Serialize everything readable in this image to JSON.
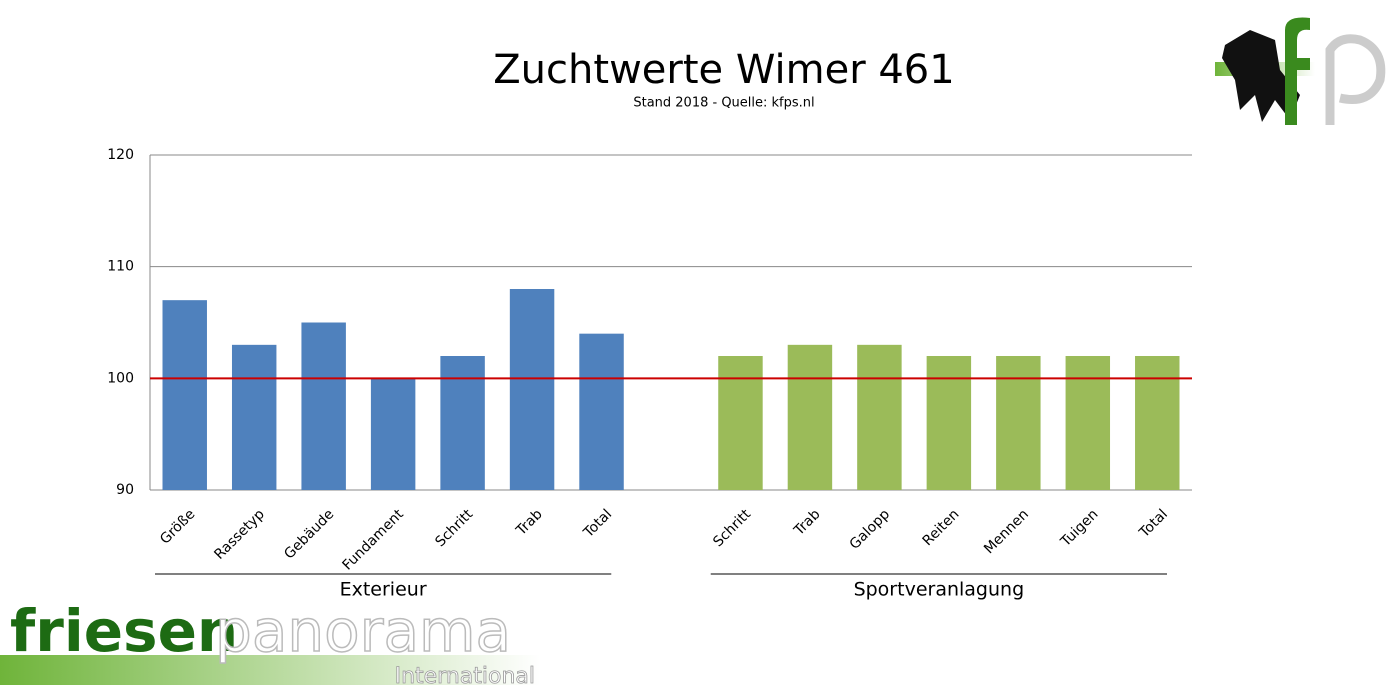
{
  "chart_data": {
    "type": "bar",
    "title": "Zuchtwerte Wimer 461",
    "subtitle": "Stand 2018 - Quelle: kfps.nl",
    "categories": [
      "Größe",
      "Rassetyp",
      "Gebäude",
      "Fundament",
      "Schritt",
      "Trab",
      "Total",
      null,
      "Schritt",
      "Trab",
      "Galopp",
      "Reiten",
      "Mennen",
      "Tuigen",
      "Total"
    ],
    "series": [
      {
        "name": "Exterieur",
        "color": "#4f81bd",
        "values": [
          107,
          103,
          105,
          100,
          102,
          108,
          104,
          null,
          null,
          null,
          null,
          null,
          null,
          null,
          null
        ]
      },
      {
        "name": "Sportveranlagung",
        "color": "#9bbb59",
        "values": [
          null,
          null,
          null,
          null,
          null,
          null,
          null,
          null,
          102,
          103,
          103,
          102,
          102,
          102,
          102
        ]
      }
    ],
    "ylim": [
      90,
      120
    ],
    "yticks": [
      90,
      100,
      110,
      120
    ],
    "grid": true,
    "reference_line": {
      "value": 100,
      "color": "#cc0000"
    }
  },
  "logo": {
    "word1": "friesen",
    "word2": "panorama",
    "word3": "International"
  }
}
